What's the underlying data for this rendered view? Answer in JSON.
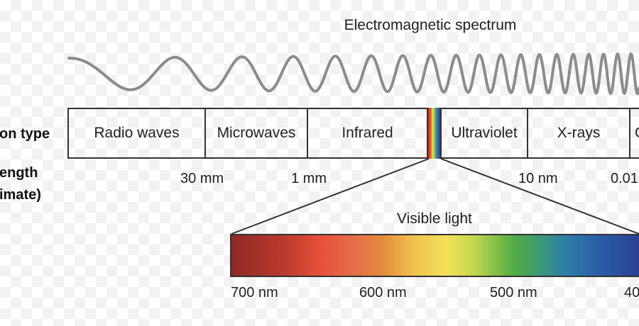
{
  "title": "Electromagnetic spectrum",
  "row_labels": {
    "radiation_type": "on type",
    "wavelength_line1": "ength",
    "wavelength_line2": "imate)"
  },
  "bands": [
    {
      "name": "radio",
      "label": "Radio waves"
    },
    {
      "name": "microwaves",
      "label": "Microwaves"
    },
    {
      "name": "infrared",
      "label": "Infrared"
    },
    {
      "name": "ultraviolet",
      "label": "Ultraviolet"
    },
    {
      "name": "xrays",
      "label": "X-rays"
    },
    {
      "name": "gamma-partial",
      "label": "G"
    }
  ],
  "wavelengths": [
    "30 mm",
    "1 mm",
    "10 nm",
    "0.01"
  ],
  "visible": {
    "label": "Visible light",
    "ticks": [
      "700 nm",
      "600 nm",
      "500 nm",
      "40"
    ]
  },
  "colors": {
    "wave": "#8c8c8c",
    "border": "#333333",
    "red": "#a3322c",
    "orange": "#e8523a",
    "yellow": "#f2e15a",
    "green": "#5cae45",
    "blue": "#2d6fad",
    "violet": "#2b3a8f"
  }
}
